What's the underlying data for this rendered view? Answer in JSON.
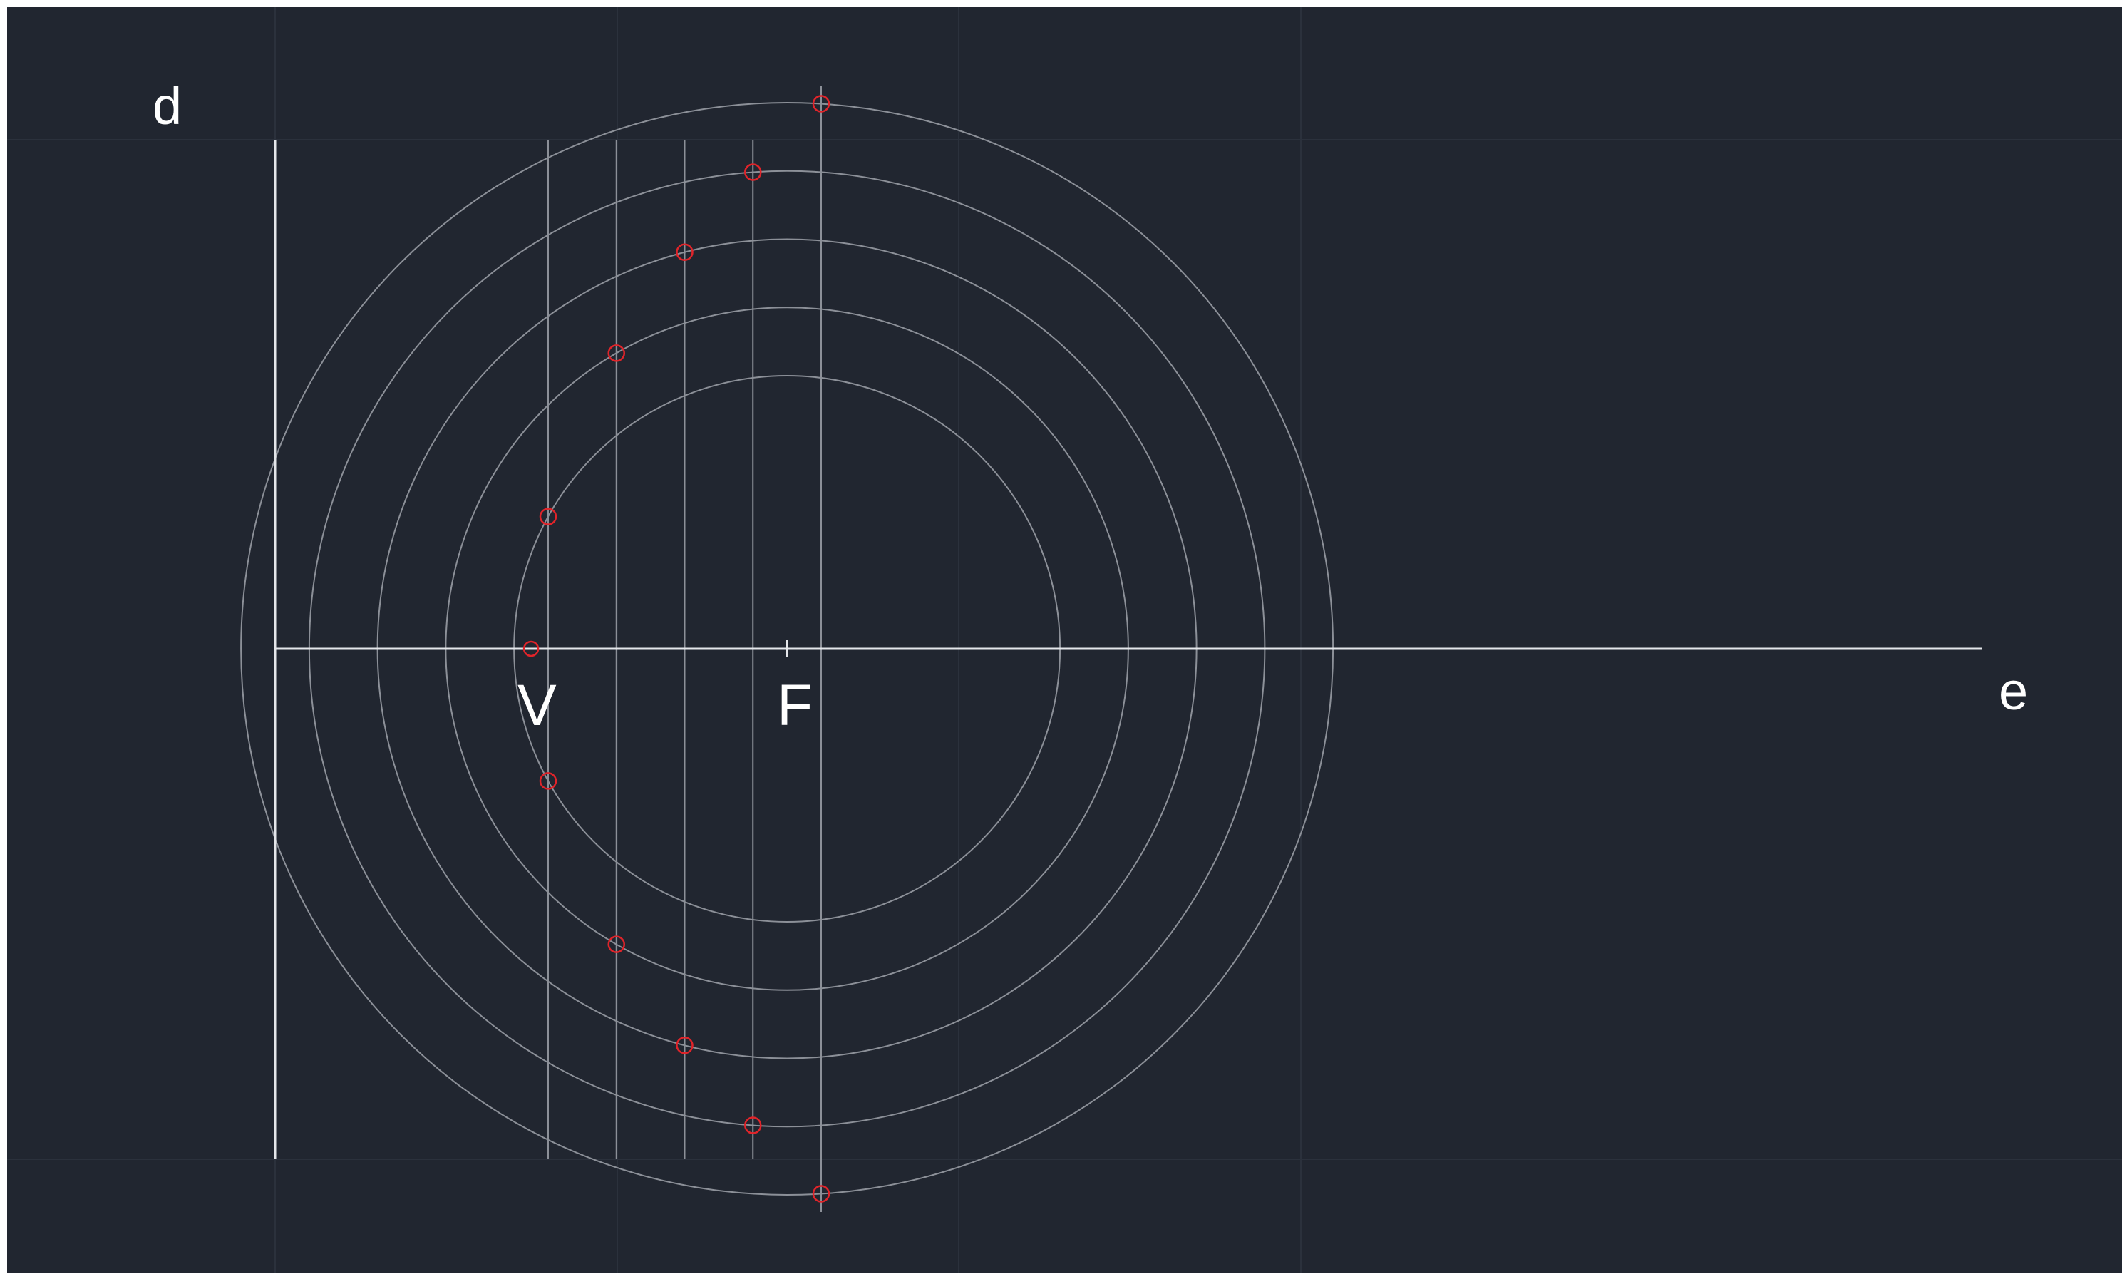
{
  "labels": {
    "directrix": "d",
    "vertex": "V",
    "focus": "F",
    "axis": "e"
  },
  "colors": {
    "background": "#212630",
    "grid": "#2b313c",
    "main_lines": "#e4e6ea",
    "construction": "#8c9098",
    "points": "#e0242a",
    "text": "#ffffff"
  },
  "construction": {
    "distance_directrix_to_focus": 7.5,
    "vertex_offset": 3.75,
    "construction_line_offsets": [
      4,
      5,
      6,
      7,
      8
    ],
    "circle_radii": [
      4,
      5,
      6,
      7,
      8
    ]
  }
}
